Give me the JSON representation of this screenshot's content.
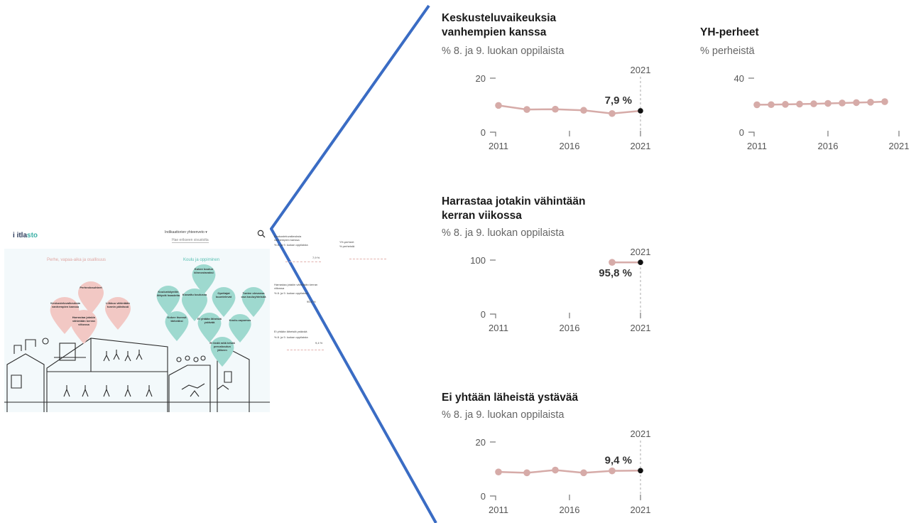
{
  "app": {
    "logo_prefix": "i",
    "logo_main": "itla",
    "logo_accent": "sto",
    "select_label": "Indikaattorien yhteenveto",
    "search_link": "Hae erikseen sivustolta",
    "section_left": "Perhe, vapaa-aika ja osallisuus",
    "section_right": "Koulu ja oppiminen",
    "drops_pink": [
      "Perheolosuhteet",
      "Keskusteluvaikeuksia vanhempien kanssa",
      "Liikkuu vähintään tunnin päivässä",
      "Harrastaa jotakin vähintään kerran viikossa"
    ],
    "drops_teal": [
      "Kokee koulun kiinnostavaksi",
      "Koulunkäyntiin liittyviä haasteita",
      "Kiusattu koulussa",
      "Opettajat kuuntelevat",
      "Tuntee olevansa osa kouluyhteisöä",
      "Kokee itsensä tärkeäksi",
      "Ei yhtään läheistä ystävää",
      "Koulu-uupumus",
      "Ei tiedä mitä tehdä peruskoulun jälkeen"
    ],
    "mini_texts": [
      "Keskusteluvaikeuksia vanhempien kanssa",
      "% 8. ja 9. luokan oppilaista",
      "YH-perheet",
      "% perheistä",
      "Harrastaa jotakin vähintään kerran viikossa",
      "% 8. ja 9. luokan oppilaista",
      "Ei yhtään läheistä ystävää",
      "% 8. ja 9. luokan oppilaista"
    ],
    "mini_values": [
      "7,9 %",
      "95,8 %",
      "9,4 %"
    ]
  },
  "colors": {
    "line": "#d6aba8",
    "dot": "#d6aba8",
    "last_dot": "#111111",
    "callout": "#3a6cc4",
    "axis_text": "#555555",
    "teal": "#9ed9cf",
    "pink": "#f2c8c4"
  },
  "chart_data": [
    {
      "type": "line",
      "title": "Keskusteluvaikeuksia vanhempien kanssa",
      "subtitle": "% 8. ja 9. luokan oppilaista",
      "x": [
        2011,
        2013,
        2015,
        2017,
        2019,
        2021
      ],
      "y": [
        9.9,
        8.4,
        8.5,
        8.1,
        6.9,
        7.9
      ],
      "xlim": [
        2011,
        2021
      ],
      "ylim": [
        0,
        20
      ],
      "x_ticks": [
        2011,
        2016,
        2021
      ],
      "y_ticks": [
        0,
        20
      ],
      "highlight_year": "2021",
      "highlight_label": "7,9 %"
    },
    {
      "type": "line",
      "title": "YH-perheet",
      "subtitle": "% perheistä",
      "x": [
        2011,
        2012,
        2013,
        2014,
        2015,
        2016,
        2017,
        2018,
        2019,
        2020
      ],
      "y": [
        20.3,
        20.4,
        20.6,
        20.8,
        21.0,
        21.3,
        21.6,
        21.9,
        22.2,
        22.6
      ],
      "xlim": [
        2011,
        2021
      ],
      "ylim": [
        0,
        40
      ],
      "x_ticks": [
        2011,
        2016,
        2021
      ],
      "y_ticks": [
        0,
        40
      ]
    },
    {
      "type": "line",
      "title": "Harrastaa jotakin vähintään kerran viikossa",
      "subtitle": "% 8. ja 9. luokan oppilaista",
      "x": [
        2019,
        2021
      ],
      "y": [
        95.8,
        95.8
      ],
      "xlim": [
        2011,
        2021
      ],
      "ylim": [
        0,
        100
      ],
      "x_ticks": [
        2011,
        2016,
        2021
      ],
      "y_ticks": [
        0,
        100
      ],
      "highlight_year": "2021",
      "highlight_label": "95,8 %"
    },
    {
      "type": "line",
      "title": "Ei yhtään läheistä ystävää",
      "subtitle": "% 8. ja 9. luokan oppilaista",
      "x": [
        2011,
        2013,
        2015,
        2017,
        2019,
        2021
      ],
      "y": [
        8.9,
        8.6,
        9.6,
        8.6,
        9.3,
        9.4
      ],
      "xlim": [
        2011,
        2021
      ],
      "ylim": [
        0,
        20
      ],
      "x_ticks": [
        2011,
        2016,
        2021
      ],
      "y_ticks": [
        0,
        20
      ],
      "highlight_year": "2021",
      "highlight_label": "9,4 %"
    }
  ]
}
